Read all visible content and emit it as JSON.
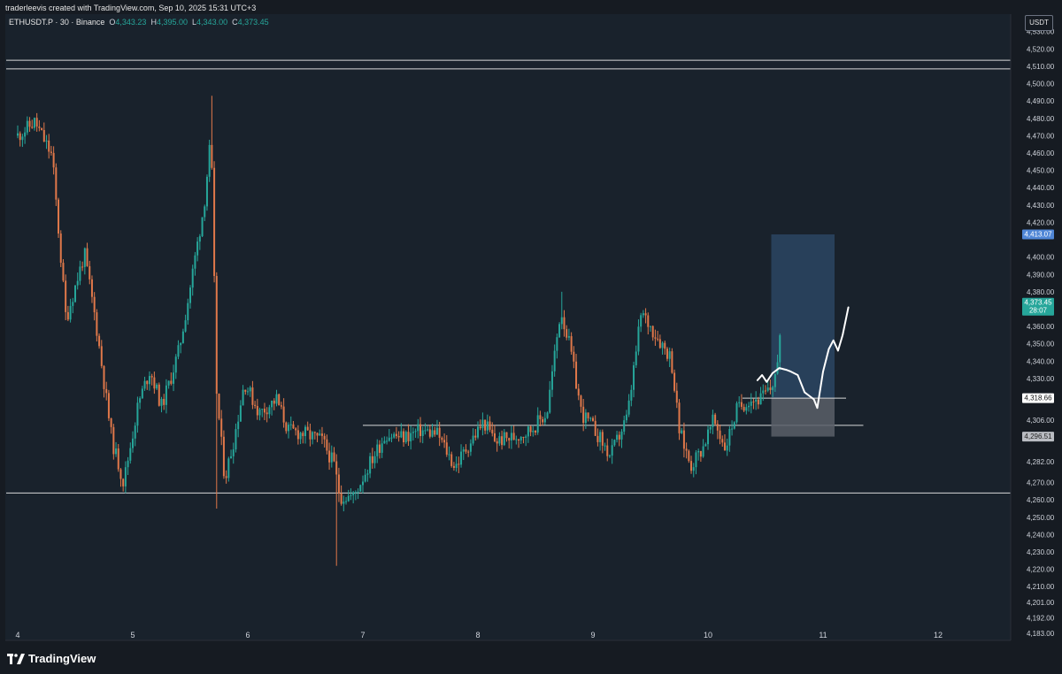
{
  "header": {
    "credit": "traderleevis created with TradingView.com, Sep 10, 2025 15:31 UTC+3"
  },
  "legend": {
    "symbol": "ETHUSDT.P · 30 · Binance",
    "open_label": "O",
    "open": "4,343.23",
    "high_label": "H",
    "high": "4,395.00",
    "low_label": "L",
    "low": "4,343.00",
    "close_label": "C",
    "close": "4,373.45"
  },
  "currency": "USDT",
  "brand": "TradingView",
  "colors": {
    "background": "#161b22",
    "up": "#26a69a",
    "down": "#e0784a",
    "level_line": "#d8d8d8",
    "target_zone": "#2b4563",
    "stop_zone": "#5a5f68",
    "projection": "#ffffff"
  },
  "chart_data": {
    "type": "candlestick",
    "symbol": "ETHUSDT.P",
    "interval": "30",
    "exchange": "Binance",
    "ylim": [
      4179,
      4537
    ],
    "y_ticks": [
      {
        "value": 4530,
        "label": "4,530.00"
      },
      {
        "value": 4520,
        "label": "4,520.00"
      },
      {
        "value": 4510,
        "label": "4,510.00"
      },
      {
        "value": 4500,
        "label": "4,500.00"
      },
      {
        "value": 4490,
        "label": "4,490.00"
      },
      {
        "value": 4480,
        "label": "4,480.00"
      },
      {
        "value": 4470,
        "label": "4,470.00"
      },
      {
        "value": 4460,
        "label": "4,460.00"
      },
      {
        "value": 4450,
        "label": "4,450.00"
      },
      {
        "value": 4440,
        "label": "4,440.00"
      },
      {
        "value": 4430,
        "label": "4,430.00"
      },
      {
        "value": 4420,
        "label": "4,420.00"
      },
      {
        "value": 4400,
        "label": "4,400.00"
      },
      {
        "value": 4390,
        "label": "4,390.00"
      },
      {
        "value": 4380,
        "label": "4,380.00"
      },
      {
        "value": 4360,
        "label": "4,360.00"
      },
      {
        "value": 4350,
        "label": "4,350.00"
      },
      {
        "value": 4340,
        "label": "4,340.00"
      },
      {
        "value": 4330,
        "label": "4,330.00"
      },
      {
        "value": 4306,
        "label": "4,306.00"
      },
      {
        "value": 4282,
        "label": "4,282.00"
      },
      {
        "value": 4270,
        "label": "4,270.00"
      },
      {
        "value": 4260,
        "label": "4,260.00"
      },
      {
        "value": 4250,
        "label": "4,250.00"
      },
      {
        "value": 4240,
        "label": "4,240.00"
      },
      {
        "value": 4230,
        "label": "4,230.00"
      },
      {
        "value": 4220,
        "label": "4,220.00"
      },
      {
        "value": 4210,
        "label": "4,210.00"
      },
      {
        "value": 4201,
        "label": "4,201.00"
      },
      {
        "value": 4192,
        "label": "4,192.00"
      },
      {
        "value": 4183,
        "label": "4,183.00"
      }
    ],
    "x_ticks": [
      {
        "day": 4,
        "label": "4"
      },
      {
        "day": 5,
        "label": "5"
      },
      {
        "day": 6,
        "label": "6"
      },
      {
        "day": 7,
        "label": "7"
      },
      {
        "day": 8,
        "label": "8"
      },
      {
        "day": 9,
        "label": "9"
      },
      {
        "day": 10,
        "label": "10"
      },
      {
        "day": 11,
        "label": "11"
      },
      {
        "day": 12,
        "label": "12"
      }
    ],
    "price_labels": [
      {
        "value": 4413.07,
        "label": "4,413.07",
        "style": "target"
      },
      {
        "value": 4373.45,
        "label": "4,373.45",
        "sublabel": "28:07",
        "style": "current"
      },
      {
        "value": 4318.66,
        "label": "4,318.66",
        "style": "entry"
      },
      {
        "value": 4296.51,
        "label": "4,296.51",
        "style": "stop"
      }
    ],
    "levels": [
      {
        "value": 4513.5,
        "from_day": 3.9,
        "to_day": 12.7
      },
      {
        "value": 4508.5,
        "from_day": 3.9,
        "to_day": 12.7
      },
      {
        "value": 4264,
        "from_day": 3.9,
        "to_day": 12.7
      },
      {
        "value": 4303,
        "from_day": 7.0,
        "to_day": 11.35
      }
    ],
    "position": {
      "from_day": 10.55,
      "to_day": 11.1,
      "entry": 4318.66,
      "target": 4413.07,
      "stop": 4296.51
    },
    "projection_path": [
      [
        10.43,
        4329
      ],
      [
        10.47,
        4332
      ],
      [
        10.51,
        4328
      ],
      [
        10.56,
        4333
      ],
      [
        10.62,
        4336
      ],
      [
        10.68,
        4335
      ],
      [
        10.72,
        4334
      ],
      [
        10.78,
        4332
      ],
      [
        10.84,
        4322
      ],
      [
        10.88,
        4320
      ],
      [
        10.92,
        4318
      ],
      [
        10.95,
        4313
      ],
      [
        11.0,
        4334
      ],
      [
        11.05,
        4347
      ],
      [
        11.09,
        4352
      ],
      [
        11.13,
        4346
      ],
      [
        11.17,
        4355
      ],
      [
        11.22,
        4371
      ]
    ],
    "key_points": [
      {
        "day": 4.0,
        "value": 4470
      },
      {
        "day": 4.15,
        "value": 4478
      },
      {
        "day": 4.3,
        "value": 4458
      },
      {
        "day": 4.42,
        "value": 4364
      },
      {
        "day": 4.58,
        "value": 4402
      },
      {
        "day": 4.68,
        "value": 4362
      },
      {
        "day": 4.82,
        "value": 4294
      },
      {
        "day": 4.92,
        "value": 4270
      },
      {
        "day": 5.05,
        "value": 4316
      },
      {
        "day": 5.15,
        "value": 4335
      },
      {
        "day": 5.25,
        "value": 4314
      },
      {
        "day": 5.32,
        "value": 4328
      },
      {
        "day": 5.4,
        "value": 4346
      },
      {
        "day": 5.48,
        "value": 4375
      },
      {
        "day": 5.55,
        "value": 4403
      },
      {
        "day": 5.62,
        "value": 4430
      },
      {
        "day": 5.68,
        "value": 4470
      },
      {
        "day": 5.73,
        "value": 4320
      },
      {
        "day": 5.8,
        "value": 4272
      },
      {
        "day": 5.88,
        "value": 4295
      },
      {
        "day": 5.97,
        "value": 4328
      },
      {
        "day": 6.1,
        "value": 4310
      },
      {
        "day": 6.25,
        "value": 4318
      },
      {
        "day": 6.35,
        "value": 4300
      },
      {
        "day": 6.5,
        "value": 4298
      },
      {
        "day": 6.65,
        "value": 4294
      },
      {
        "day": 6.75,
        "value": 4280
      },
      {
        "day": 6.8,
        "value": 4262
      },
      {
        "day": 6.92,
        "value": 4262
      },
      {
        "day": 7.05,
        "value": 4280
      },
      {
        "day": 7.2,
        "value": 4298
      },
      {
        "day": 7.35,
        "value": 4296
      },
      {
        "day": 7.5,
        "value": 4300
      },
      {
        "day": 7.65,
        "value": 4298
      },
      {
        "day": 7.8,
        "value": 4279
      },
      {
        "day": 7.92,
        "value": 4292
      },
      {
        "day": 8.05,
        "value": 4305
      },
      {
        "day": 8.15,
        "value": 4294
      },
      {
        "day": 8.3,
        "value": 4296
      },
      {
        "day": 8.45,
        "value": 4300
      },
      {
        "day": 8.6,
        "value": 4310
      },
      {
        "day": 8.72,
        "value": 4370
      },
      {
        "day": 8.8,
        "value": 4348
      },
      {
        "day": 8.9,
        "value": 4310
      },
      {
        "day": 9.02,
        "value": 4300
      },
      {
        "day": 9.15,
        "value": 4285
      },
      {
        "day": 9.3,
        "value": 4308
      },
      {
        "day": 9.42,
        "value": 4368
      },
      {
        "day": 9.55,
        "value": 4355
      },
      {
        "day": 9.68,
        "value": 4342
      },
      {
        "day": 9.75,
        "value": 4300
      },
      {
        "day": 9.85,
        "value": 4280
      },
      {
        "day": 9.95,
        "value": 4290
      },
      {
        "day": 10.05,
        "value": 4306
      },
      {
        "day": 10.15,
        "value": 4290
      },
      {
        "day": 10.25,
        "value": 4312
      },
      {
        "day": 10.35,
        "value": 4318
      },
      {
        "day": 10.45,
        "value": 4318
      },
      {
        "day": 10.55,
        "value": 4324
      },
      {
        "day": 10.62,
        "value": 4343
      },
      {
        "day": 10.64,
        "value": 4373
      }
    ]
  }
}
